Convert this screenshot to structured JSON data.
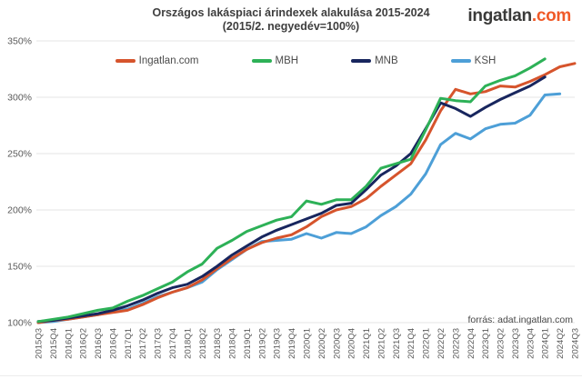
{
  "header": {
    "logo_brand": "ingatlan",
    "logo_tld": ".com"
  },
  "source_text": "forrás: adat.ingatlan.com",
  "colors": {
    "title_text": "#3e3e3e",
    "axis_text": "#5a5a5a",
    "gridline": "#e4e4e4",
    "logo_dark": "#3a3a39",
    "logo_orange": "#f05a28",
    "ingatlan_orange": "#d6542c",
    "mbh_green": "#2db157",
    "mnb_navy": "#18265e",
    "ksh_blue": "#4d9fd7"
  },
  "chart_data": {
    "type": "line",
    "title": "Országos lakáspiaci árindexek alakulása 2015-2024",
    "subtitle": "(2015/2. negyedév=100%)",
    "grid": "horizontal",
    "legend_position": "top",
    "y_axis": {
      "min": 100,
      "max": 350,
      "step": 50,
      "unit": "%"
    },
    "categories": [
      "2015Q3",
      "2015Q4",
      "2016Q1",
      "2016Q2",
      "2016Q3",
      "2016Q4",
      "2017Q1",
      "2017Q2",
      "2017Q3",
      "2017Q4",
      "2018Q1",
      "2018Q2",
      "2018Q3",
      "2018Q4",
      "2019Q1",
      "2019Q2",
      "2019Q3",
      "2019Q4",
      "2020Q1",
      "2020Q2",
      "2020Q3",
      "2020Q4",
      "2021Q1",
      "2021Q2",
      "2021Q3",
      "2021Q4",
      "2022Q1",
      "2022Q2",
      "2022Q3",
      "2022Q4",
      "2023Q1",
      "2023Q2",
      "2023Q3",
      "2023Q4",
      "2024Q1",
      "2024Q2",
      "2024Q3"
    ],
    "series": [
      {
        "name": "Ingatlan.com",
        "color": "#d6542c",
        "values": [
          100,
          102,
          103,
          105,
          107,
          109,
          111,
          116,
          122,
          127,
          131,
          138,
          148,
          157,
          165,
          171,
          175,
          178,
          185,
          194,
          200,
          203,
          210,
          221,
          231,
          241,
          262,
          288,
          307,
          303,
          305,
          310,
          309,
          314,
          320,
          327,
          330
        ]
      },
      {
        "name": "MBH",
        "color": "#2db157",
        "values": [
          101,
          103,
          105,
          108,
          111,
          113,
          119,
          124,
          130,
          136,
          145,
          152,
          166,
          173,
          181,
          186,
          191,
          194,
          208,
          205,
          209,
          209,
          221,
          237,
          241,
          245,
          271,
          299,
          297,
          296,
          310,
          315,
          319,
          326,
          334,
          null,
          null
        ]
      },
      {
        "name": "MNB",
        "color": "#18265e",
        "values": [
          101,
          102,
          104,
          106,
          108,
          111,
          115,
          120,
          126,
          131,
          134,
          141,
          150,
          160,
          168,
          176,
          182,
          187,
          192,
          197,
          204,
          206,
          218,
          231,
          239,
          250,
          272,
          295,
          290,
          283,
          291,
          298,
          304,
          310,
          318,
          null,
          null
        ]
      },
      {
        "name": "KSH",
        "color": "#4d9fd7",
        "values": [
          100,
          101,
          103,
          105,
          107,
          110,
          112,
          117,
          123,
          127,
          131,
          136,
          147,
          156,
          165,
          172,
          173,
          174,
          179,
          175,
          180,
          179,
          185,
          195,
          203,
          214,
          232,
          258,
          268,
          263,
          272,
          276,
          277,
          284,
          302,
          303,
          null
        ]
      }
    ]
  }
}
